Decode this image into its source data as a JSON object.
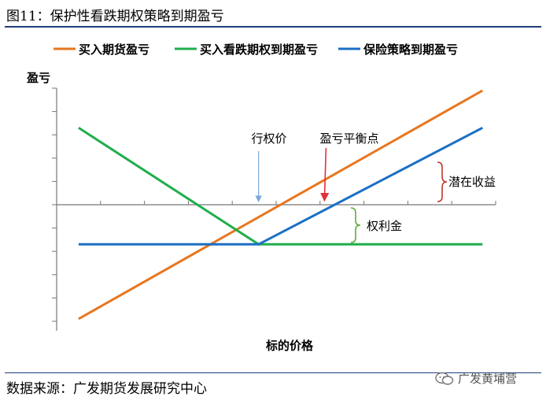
{
  "figure": {
    "title": "图11：保护性看跌期权策略到期盈亏",
    "source": "数据来源：广发期货发展研究中心",
    "watermark": "广发黄埔营",
    "watermark_icon": "wechat-icon"
  },
  "chart_data": {
    "type": "line",
    "xlabel": "标的价格",
    "ylabel": "盈亏",
    "xlim": [
      0,
      10
    ],
    "ylim": [
      -5,
      5
    ],
    "grid": false,
    "legend_placement": "top",
    "series": [
      {
        "name": "买入期货盈亏",
        "color": "#e8761e",
        "points": [
          [
            0.5,
            -4.9
          ],
          [
            9.7,
            4.9
          ]
        ]
      },
      {
        "name": "买入看跌期权到期盈亏",
        "color": "#1fae4b",
        "points": [
          [
            0.5,
            3.3
          ],
          [
            4.6,
            -1.7
          ],
          [
            9.7,
            -1.7
          ]
        ]
      },
      {
        "name": "保险策略到期盈亏",
        "color": "#1a6fc4",
        "points": [
          [
            0.5,
            -1.7
          ],
          [
            4.6,
            -1.7
          ],
          [
            9.7,
            3.3
          ]
        ]
      }
    ],
    "annotations": {
      "strike": {
        "label": "行权价",
        "x": 4.6,
        "color": "#7aa7d8"
      },
      "breakeven": {
        "label": "盈亏平衡点",
        "x": 6.1,
        "color": "#e0313a"
      },
      "upside": {
        "label": "潜在收益",
        "color": "#c0392b"
      },
      "premium": {
        "label": "权利金",
        "color": "#5fae3a"
      }
    }
  }
}
